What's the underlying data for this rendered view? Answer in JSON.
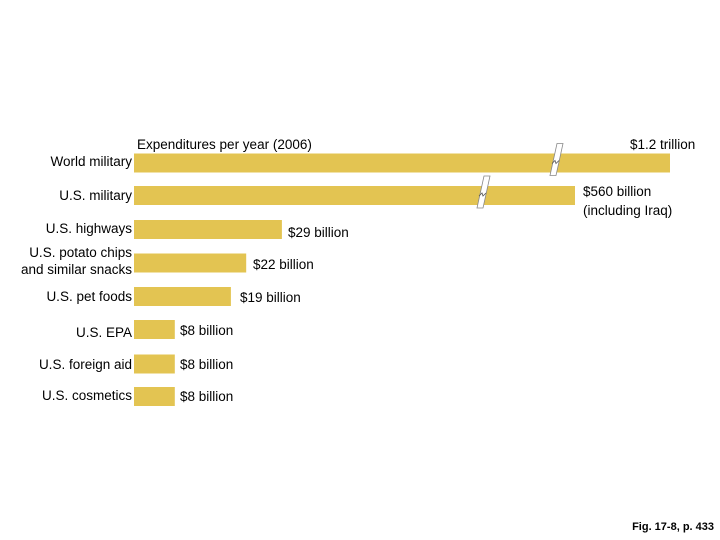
{
  "chart_data": {
    "type": "bar",
    "orientation": "horizontal",
    "title": "Expenditures per year (2006)",
    "unit": "billion USD",
    "axis_breaks": true,
    "categories": [
      [
        "World military"
      ],
      [
        "U.S. military"
      ],
      [
        "U.S. highways"
      ],
      [
        "U.S. potato chips",
        "and similar snacks"
      ],
      [
        "U.S. pet foods"
      ],
      [
        "U.S. EPA"
      ],
      [
        "U.S. foreign aid"
      ],
      [
        "U.S. cosmetics"
      ]
    ],
    "values": [
      1200,
      560,
      29,
      22,
      19,
      8,
      8,
      8
    ],
    "data_labels": [
      [
        "$1.2 trillion"
      ],
      [
        "$560 billion",
        "(including Iraq)"
      ],
      [
        "$29 billion"
      ],
      [
        "$22 billion"
      ],
      [
        "$19 billion"
      ],
      [
        "$8 billion"
      ],
      [
        "$8 billion"
      ],
      [
        "$8 billion"
      ]
    ],
    "bar_color": "#e3c452"
  },
  "caption": "Fig. 17-8, p. 433"
}
